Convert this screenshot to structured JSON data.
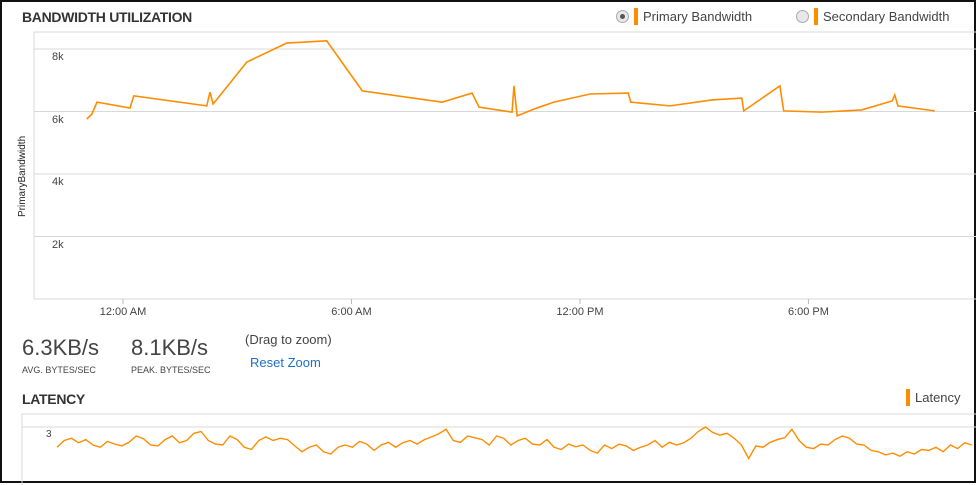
{
  "bandwidth": {
    "title": "BANDWIDTH UTILIZATION",
    "legend": [
      {
        "label": "Primary Bandwidth",
        "selected": true
      },
      {
        "label": "Secondary Bandwidth",
        "selected": false
      }
    ],
    "drag_hint": "(Drag to zoom)",
    "reset_zoom": "Reset Zoom",
    "stats": [
      {
        "value": "6.3KB/s",
        "label": "AVG. BYTES/SEC"
      },
      {
        "value": "8.1KB/s",
        "label": "PEAK. BYTES/SEC"
      }
    ]
  },
  "latency": {
    "title": "LATENCY",
    "legend": "Latency"
  },
  "colors": {
    "series": "#ff8c00",
    "grid": "#d8d8d8",
    "link": "#1f6fc5"
  },
  "chart_data": [
    {
      "type": "line",
      "ylabel": "PrimaryBandwidth",
      "yticks": [
        "2k",
        "4k",
        "6k",
        "8k"
      ],
      "ytick_values": [
        2000,
        4000,
        6000,
        8000
      ],
      "xticks": [
        "12:00 AM",
        "6:00 AM",
        "12:00 PM",
        "6:00 PM"
      ],
      "grid": true,
      "series": [
        {
          "name": "Primary Bandwidth",
          "x": [
            "23:03",
            "23:11",
            "23:19",
            "00:11",
            "00:17",
            "02:12",
            "02:17",
            "02:22",
            "03:15",
            "04:18",
            "05:21",
            "06:17",
            "08:23",
            "09:10",
            "09:21",
            "10:13",
            "10:16",
            "10:21",
            "10:52",
            "11:19",
            "12:16",
            "13:16",
            "13:20",
            "14:22",
            "15:28",
            "16:15",
            "16:18",
            "17:15",
            "17:21",
            "18:21",
            "19:24",
            "20:12",
            "20:16",
            "20:21",
            "21:19"
          ],
          "y": [
            5760,
            5920,
            6300,
            6110,
            6500,
            6180,
            6620,
            6240,
            7580,
            8190,
            8260,
            6660,
            6300,
            6590,
            6140,
            5980,
            6820,
            5860,
            6110,
            6300,
            6560,
            6590,
            6300,
            6180,
            6370,
            6430,
            6020,
            6820,
            6020,
            5980,
            6050,
            6340,
            6530,
            6180,
            6020
          ]
        }
      ]
    },
    {
      "type": "line",
      "yticks": [
        "3"
      ],
      "ytick_values": [
        3
      ],
      "series": [
        {
          "name": "Latency",
          "y": [
            2.55,
            2.7,
            2.75,
            2.65,
            2.72,
            2.6,
            2.55,
            2.68,
            2.62,
            2.58,
            2.66,
            2.8,
            2.74,
            2.6,
            2.58,
            2.72,
            2.8,
            2.65,
            2.7,
            2.86,
            2.9,
            2.7,
            2.62,
            2.6,
            2.8,
            2.72,
            2.55,
            2.5,
            2.7,
            2.78,
            2.7,
            2.75,
            2.72,
            2.58,
            2.45,
            2.55,
            2.6,
            2.45,
            2.4,
            2.55,
            2.6,
            2.55,
            2.68,
            2.62,
            2.48,
            2.6,
            2.66,
            2.55,
            2.65,
            2.7,
            2.62,
            2.72,
            2.78,
            2.85,
            2.95,
            2.7,
            2.66,
            2.8,
            2.76,
            2.72,
            2.6,
            2.8,
            2.75,
            2.6,
            2.7,
            2.75,
            2.62,
            2.6,
            2.72,
            2.55,
            2.5,
            2.62,
            2.56,
            2.6,
            2.48,
            2.42,
            2.6,
            2.52,
            2.62,
            2.58,
            2.48,
            2.55,
            2.6,
            2.7,
            2.55,
            2.66,
            2.6,
            2.65,
            2.75,
            2.9,
            3.0,
            2.88,
            2.82,
            2.86,
            2.75,
            2.6,
            2.3,
            2.58,
            2.55,
            2.66,
            2.72,
            2.76,
            2.95,
            2.7,
            2.55,
            2.52,
            2.62,
            2.6,
            2.72,
            2.8,
            2.75,
            2.62,
            2.6,
            2.48,
            2.45,
            2.38,
            2.42,
            2.35,
            2.45,
            2.4,
            2.5,
            2.48,
            2.55,
            2.45,
            2.6,
            2.52,
            2.65,
            2.6
          ]
        }
      ]
    }
  ]
}
